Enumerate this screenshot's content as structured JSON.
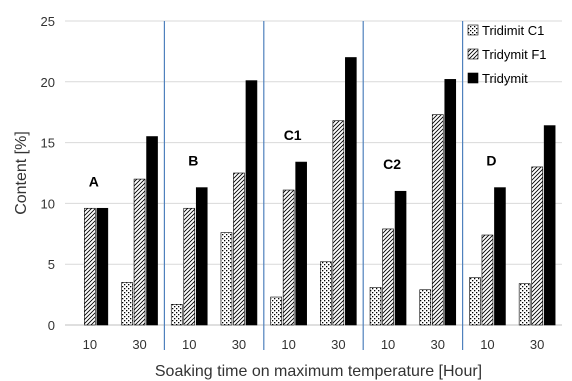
{
  "chart_data": {
    "type": "bar",
    "title": "",
    "xlabel": "Soaking time on maximum temperature [Hour]",
    "ylabel": "Content [%]",
    "ylim": [
      0,
      25
    ],
    "yticks": [
      0,
      5,
      10,
      15,
      20,
      25
    ],
    "grid": "horizontal",
    "legend_position": "top-right",
    "groups": [
      "A",
      "B",
      "C1",
      "C2",
      "D"
    ],
    "categories": [
      "10",
      "30",
      "10",
      "30",
      "10",
      "30",
      "10",
      "30",
      "10",
      "30"
    ],
    "series": [
      {
        "name": "Tridimit C1",
        "pattern": "dotted",
        "values": [
          0,
          3.5,
          1.7,
          7.6,
          2.3,
          5.2,
          3.1,
          2.9,
          3.9,
          3.4
        ]
      },
      {
        "name": "Tridymit F1",
        "pattern": "hatched",
        "values": [
          9.6,
          12.0,
          9.6,
          12.5,
          11.1,
          16.8,
          7.9,
          17.3,
          7.4,
          13.0
        ]
      },
      {
        "name": "Tridymit",
        "pattern": "solid",
        "values": [
          9.6,
          15.5,
          11.3,
          20.1,
          13.4,
          22.0,
          11.0,
          20.2,
          11.3,
          16.4
        ]
      }
    ],
    "colors": {
      "separator": "#4f81bd",
      "grid": "#d9d9d9",
      "solid": "#000000"
    }
  }
}
